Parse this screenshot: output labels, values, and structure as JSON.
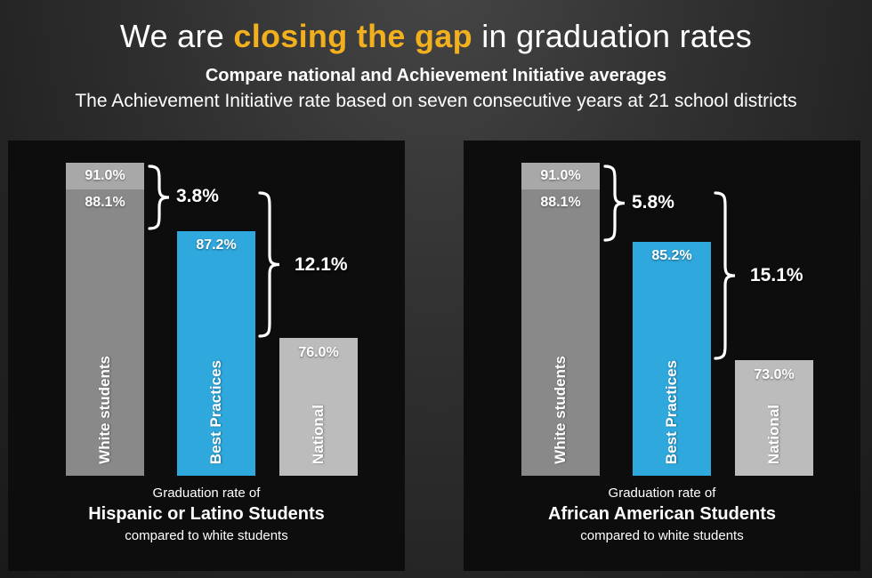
{
  "header": {
    "title_prefix": "We are ",
    "title_highlight": "closing the gap",
    "title_suffix": " in graduation rates",
    "subtitle_bold": "Compare national and Achievement Initiative averages",
    "subtitle_note": "The Achievement Initiative rate based on seven consecutive years at 21 school districts"
  },
  "colors": {
    "highlight": "#f2b01e",
    "blue_bar": "#2fa8de",
    "white_bar_cap": "#a8a8a8",
    "white_bar_body": "#898989",
    "national_bar": "#bcbcbc",
    "panel_bg": "#0d0d0d"
  },
  "chart_data": [
    {
      "type": "bar",
      "unit": "%",
      "grid": false,
      "ylim": [
        0,
        100
      ],
      "caption": {
        "line1": "Graduation rate of",
        "line2": "Hispanic or Latino Students",
        "line3": "compared to white students"
      },
      "bars": [
        {
          "name": "White students",
          "segments": [
            {
              "label": "91.0%",
              "value": 91.0
            },
            {
              "label": "88.1%",
              "value": 88.1
            }
          ]
        },
        {
          "name": "Best Practices",
          "label": "87.2%",
          "value": 87.2
        },
        {
          "name": "National",
          "label": "76.0%",
          "value": 76.0
        }
      ],
      "gaps": [
        {
          "label": "3.8%",
          "value": 3.8
        },
        {
          "label": "12.1%",
          "value": 12.1
        }
      ]
    },
    {
      "type": "bar",
      "unit": "%",
      "grid": false,
      "ylim": [
        0,
        100
      ],
      "caption": {
        "line1": "Graduation rate of",
        "line2": "African American Students",
        "line3": "compared to white students"
      },
      "bars": [
        {
          "name": "White students",
          "segments": [
            {
              "label": "91.0%",
              "value": 91.0
            },
            {
              "label": "88.1%",
              "value": 88.1
            }
          ]
        },
        {
          "name": "Best Practices",
          "label": "85.2%",
          "value": 85.2
        },
        {
          "name": "National",
          "label": "73.0%",
          "value": 73.0
        }
      ],
      "gaps": [
        {
          "label": "5.8%",
          "value": 5.8
        },
        {
          "label": "15.1%",
          "value": 15.1
        }
      ]
    }
  ]
}
